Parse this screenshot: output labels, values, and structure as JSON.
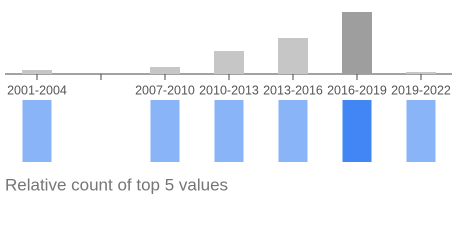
{
  "chart_data": {
    "type": "bar",
    "categories": [
      "2001-2004",
      null,
      "2007-2010",
      "2010-2013",
      "2013-2016",
      "2016-2019",
      "2019-2022"
    ],
    "values": [
      4,
      0,
      7,
      23,
      36,
      62,
      2
    ],
    "colors": [
      "#c6c6c6",
      "#c6c6c6",
      "#c6c6c6",
      "#c6c6c6",
      "#c6c6c6",
      "#9e9e9e",
      "#c6c6c6"
    ],
    "indicator_colors": [
      "#8ab4f8",
      null,
      "#8ab4f8",
      "#8ab4f8",
      "#8ab4f8",
      "#4285f4",
      "#8ab4f8"
    ],
    "caption": "Relative count of top 5 values"
  }
}
